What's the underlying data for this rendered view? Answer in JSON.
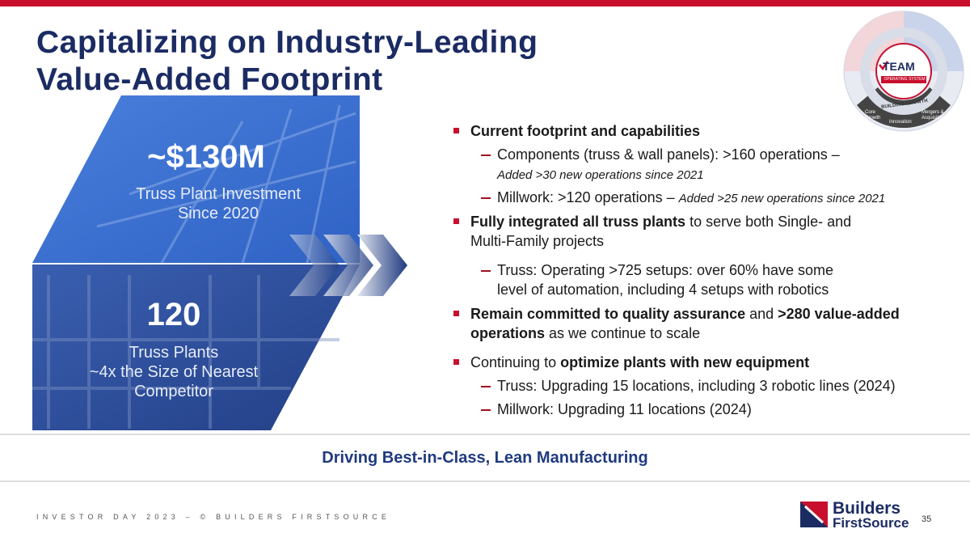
{
  "header": {
    "title_lines": [
      "Capitalizing on Industry-Leading",
      "Value-Added Footprint"
    ]
  },
  "stats": [
    {
      "value": "~$130M",
      "label_lines": [
        "Truss Plant Investment",
        "Since 2020"
      ]
    },
    {
      "value": "120",
      "label_lines": [
        "Truss Plants",
        "~4x the Size of Nearest",
        "Competitor"
      ]
    }
  ],
  "bullets": [
    {
      "level": 1,
      "lines": [
        [
          {
            "text": "Current footprint and capabilities",
            "bold": true
          }
        ]
      ]
    },
    {
      "level": 2,
      "lines": [
        [
          {
            "text": "Components (truss & wall panels): >160 operations –"
          }
        ],
        [
          {
            "text": "Added >30 new operations since 2021",
            "italic": true
          }
        ]
      ]
    },
    {
      "level": 2,
      "lines": [
        [
          {
            "text": "Millwork: >120 operations – "
          },
          {
            "text": "Added >25 new operations since 2021",
            "italic": true
          }
        ]
      ]
    },
    {
      "level": 1,
      "lines": [
        [
          {
            "text": "Fully integrated all truss plants",
            "bold": true
          },
          {
            "text": " to serve both Single- and"
          }
        ],
        [
          {
            "text": "Multi-Family projects"
          }
        ]
      ]
    },
    {
      "level": 2,
      "lines": [
        [
          {
            "text": "Truss: Operating >725 setups: over 60% have some"
          }
        ],
        [
          {
            "text": "level of automation, including 4 setups with robotics"
          }
        ]
      ]
    },
    {
      "level": 1,
      "lines": [
        [
          {
            "text": "Remain committed to quality assurance",
            "bold": true
          },
          {
            "text": " and "
          },
          {
            "text": ">280 value-added",
            "bold": true
          }
        ],
        [
          {
            "text": "operations",
            "bold": true
          },
          {
            "text": " as we continue to scale"
          }
        ]
      ]
    },
    {
      "level": 1,
      "lines": [
        [
          {
            "text": "Continuing to "
          },
          {
            "text": "optimize plants with new equipment",
            "bold": true
          }
        ]
      ]
    },
    {
      "level": 2,
      "lines": [
        [
          {
            "text": "Truss: Upgrading 15 locations, including 3 robotic lines (2024)"
          }
        ]
      ]
    },
    {
      "level": 2,
      "lines": [
        [
          {
            "text": "Millwork: Upgrading 11 locations (2024)"
          }
        ]
      ]
    }
  ],
  "banner": "Driving Best-in-Class, Lean Manufacturing",
  "footer": {
    "text": "INVESTOR DAY 2023 – © BUILDERS FIRSTSOURCE",
    "page_number": "35"
  },
  "logo": {
    "line1": "Builders",
    "line2": "FirstSource"
  },
  "wheel": {
    "center": "TEAM",
    "center_sub": "OPERATING SYSTEM",
    "ring": "BUILDING GROWTH",
    "segments": [
      "Core Growth",
      "Innovation",
      "Mergers & Acquisitions"
    ]
  }
}
